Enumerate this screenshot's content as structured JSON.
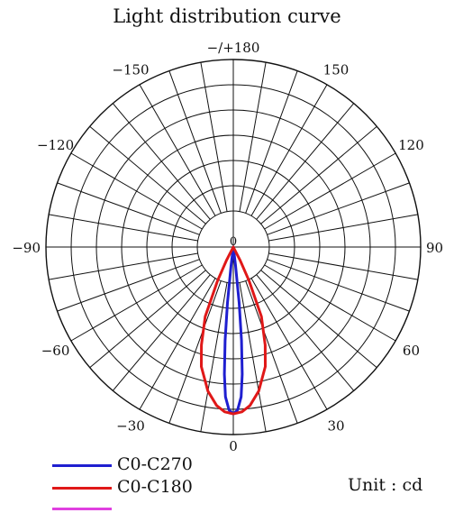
{
  "chart_data": {
    "type": "polar",
    "title": "Light distribution curve",
    "unit_label": "Unit : cd",
    "angle_labels": [
      {
        "angle": 180,
        "text": "−/+180"
      },
      {
        "angle": -150,
        "text": "−150"
      },
      {
        "angle": 150,
        "text": "150"
      },
      {
        "angle": -120,
        "text": "−120"
      },
      {
        "angle": 120,
        "text": "120"
      },
      {
        "angle": -90,
        "text": "−90"
      },
      {
        "angle": 90,
        "text": "90"
      },
      {
        "angle": -60,
        "text": "−60"
      },
      {
        "angle": 60,
        "text": "60"
      },
      {
        "angle": -30,
        "text": "−30"
      },
      {
        "angle": 30,
        "text": "30"
      },
      {
        "angle": 0,
        "text": "0"
      }
    ],
    "center_label": "0",
    "radial_rings": 7,
    "angle_step": 10,
    "series": [
      {
        "name": "C0-C270",
        "color": "#1f1fd0",
        "points": [
          {
            "angle": -8,
            "r": 0.0
          },
          {
            "angle": -7,
            "r": 0.1
          },
          {
            "angle": -6,
            "r": 0.3
          },
          {
            "angle": -5,
            "r": 0.5
          },
          {
            "angle": -4,
            "r": 0.68
          },
          {
            "angle": -3,
            "r": 0.8
          },
          {
            "angle": -1.5,
            "r": 0.87
          },
          {
            "angle": 0,
            "r": 0.89
          },
          {
            "angle": 1.5,
            "r": 0.87
          },
          {
            "angle": 3,
            "r": 0.8
          },
          {
            "angle": 4,
            "r": 0.68
          },
          {
            "angle": 5,
            "r": 0.5
          },
          {
            "angle": 6,
            "r": 0.3
          },
          {
            "angle": 7,
            "r": 0.1
          },
          {
            "angle": 8,
            "r": 0.0
          }
        ]
      },
      {
        "name": "C0-C180",
        "color": "#e01818",
        "points": [
          {
            "angle": -30,
            "r": 0.0
          },
          {
            "angle": -27,
            "r": 0.08
          },
          {
            "angle": -25,
            "r": 0.2
          },
          {
            "angle": -22,
            "r": 0.4
          },
          {
            "angle": -18,
            "r": 0.55
          },
          {
            "angle": -15,
            "r": 0.66
          },
          {
            "angle": -10,
            "r": 0.78
          },
          {
            "angle": -6,
            "r": 0.85
          },
          {
            "angle": -3,
            "r": 0.88
          },
          {
            "angle": 0,
            "r": 0.89
          },
          {
            "angle": 3,
            "r": 0.88
          },
          {
            "angle": 6,
            "r": 0.85
          },
          {
            "angle": 10,
            "r": 0.78
          },
          {
            "angle": 15,
            "r": 0.66
          },
          {
            "angle": 18,
            "r": 0.55
          },
          {
            "angle": 22,
            "r": 0.4
          },
          {
            "angle": 25,
            "r": 0.2
          },
          {
            "angle": 27,
            "r": 0.08
          },
          {
            "angle": 30,
            "r": 0.0
          }
        ]
      }
    ],
    "legend": [
      {
        "label": "C0-C270",
        "color": "#1f1fd0"
      },
      {
        "label": "C0-C180",
        "color": "#e01818"
      },
      {
        "label": "",
        "color": "#e040e0"
      }
    ]
  }
}
